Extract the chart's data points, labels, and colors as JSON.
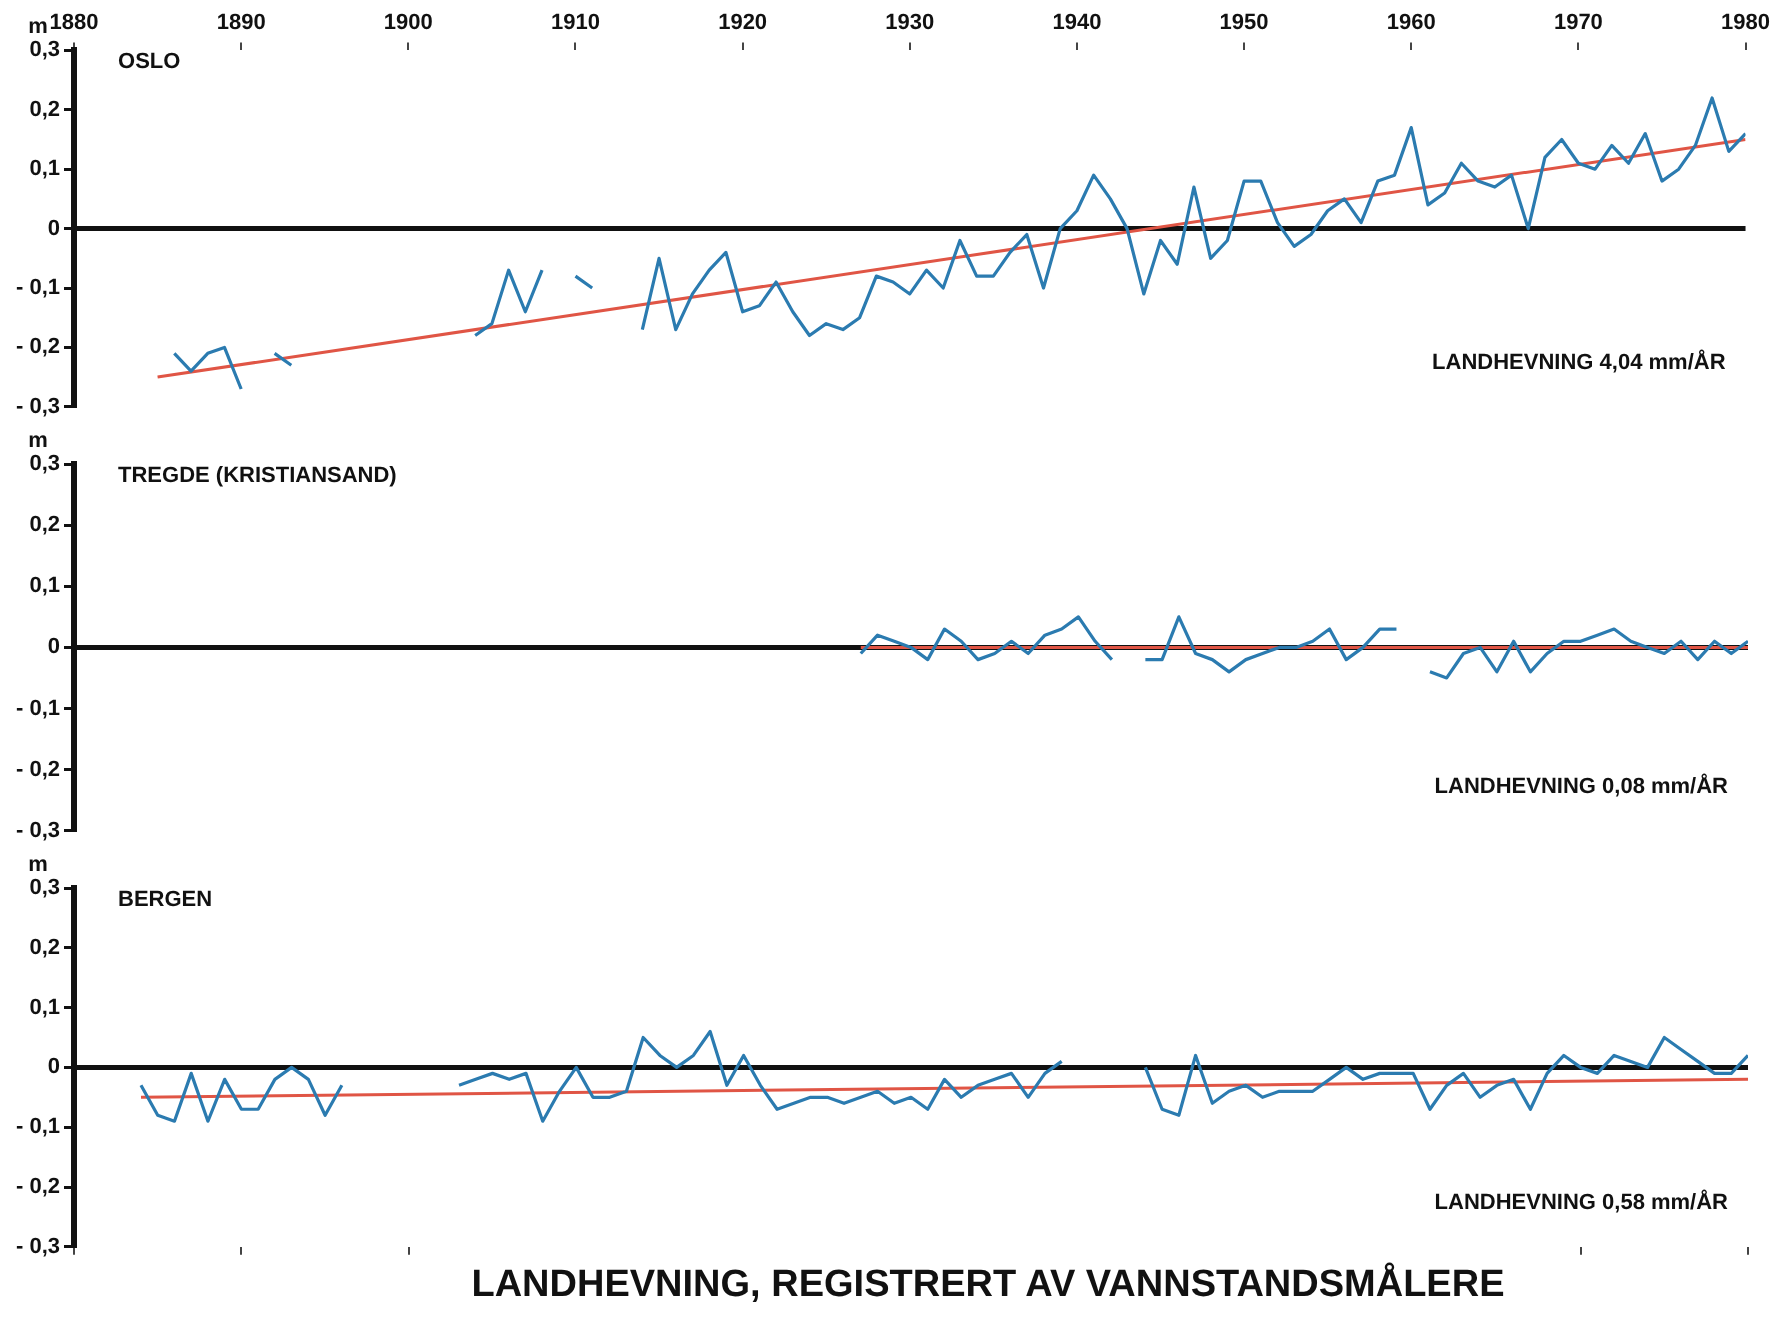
{
  "chart_data": [
    {
      "type": "line",
      "title": "OSLO",
      "ylabel": "m",
      "annotations": [
        "LANDHEVNING 4,04 mm/ÅR"
      ],
      "xlim": [
        1880,
        1980
      ],
      "xticks": [
        1880,
        1890,
        1900,
        1910,
        1920,
        1930,
        1940,
        1950,
        1960,
        1970,
        1980
      ],
      "ylim": [
        -0.3,
        0.3
      ],
      "yticks": [
        {
          "value": -0.3,
          "label": "- 0,3"
        },
        {
          "value": -0.2,
          "label": "- 0,2"
        },
        {
          "value": -0.1,
          "label": "- 0,1"
        },
        {
          "value": 0,
          "label": "0"
        },
        {
          "value": 0.1,
          "label": "0,1"
        },
        {
          "value": 0.2,
          "label": "0,2"
        },
        {
          "value": 0.3,
          "label": "0,3"
        }
      ],
      "grid": false,
      "legend": false,
      "marker": "none",
      "ref_lines": [
        {
          "axis": "y",
          "value": 0,
          "color": "#111111"
        }
      ],
      "series": [
        {
          "type": "line",
          "color": "#2b7bb0",
          "x": [
            1886,
            1887,
            1888,
            1889,
            1890,
            1891,
            1892,
            1893,
            1894,
            1904,
            1905,
            1906,
            1907,
            1908,
            1909,
            1910,
            1911,
            1912,
            1914,
            1915,
            1916,
            1917,
            1918,
            1919,
            1920,
            1921,
            1922,
            1923,
            1924,
            1925,
            1926,
            1927,
            1928,
            1929,
            1930,
            1931,
            1932,
            1933,
            1934,
            1935,
            1936,
            1937,
            1938,
            1939,
            1940,
            1941,
            1942,
            1943,
            1944,
            1945,
            1946,
            1947,
            1948,
            1949,
            1950,
            1951,
            1952,
            1953,
            1954,
            1955,
            1956,
            1957,
            1958,
            1959,
            1960,
            1961,
            1962,
            1963,
            1964,
            1965,
            1966,
            1967,
            1968,
            1969,
            1970,
            1971,
            1972,
            1973,
            1974,
            1975,
            1976,
            1977,
            1978,
            1979,
            1980
          ],
          "values": [
            -0.21,
            -0.24,
            -0.21,
            -0.2,
            -0.27,
            null,
            -0.21,
            -0.23,
            null,
            -0.18,
            -0.16,
            -0.07,
            -0.14,
            -0.07,
            null,
            -0.08,
            -0.1,
            null,
            -0.17,
            -0.05,
            -0.17,
            -0.11,
            -0.07,
            -0.04,
            -0.14,
            -0.13,
            -0.09,
            -0.14,
            -0.18,
            -0.16,
            -0.17,
            -0.15,
            -0.08,
            -0.09,
            -0.11,
            -0.07,
            -0.1,
            -0.02,
            -0.08,
            -0.08,
            -0.04,
            -0.01,
            -0.1,
            0,
            0.03,
            0.09,
            0.05,
            0,
            -0.11,
            -0.02,
            -0.06,
            0.07,
            -0.05,
            -0.02,
            0.08,
            0.08,
            0.01,
            -0.03,
            -0.01,
            0.03,
            0.05,
            0.01,
            0.08,
            0.09,
            0.17,
            0.04,
            0.06,
            0.11,
            0.08,
            0.07,
            0.09,
            0,
            0.12,
            0.15,
            0.11,
            0.1,
            0.14,
            0.11,
            0.16,
            0.08,
            0.1,
            0.14,
            0.22,
            0.13,
            0.16
          ]
        },
        {
          "type": "line",
          "color": "#e05545",
          "x": [
            1885,
            1980
          ],
          "values": [
            -0.25,
            0.15
          ]
        }
      ]
    },
    {
      "type": "line",
      "title": "TREGDE (KRISTIANSAND)",
      "ylabel": "m",
      "annotations": [
        "LANDHEVNING 0,08 mm/ÅR"
      ],
      "xlim": [
        1880,
        1980
      ],
      "ylim": [
        -0.3,
        0.3
      ],
      "yticks": [
        {
          "value": -0.3,
          "label": "- 0,3"
        },
        {
          "value": -0.2,
          "label": "- 0,2"
        },
        {
          "value": -0.1,
          "label": "- 0,1"
        },
        {
          "value": 0,
          "label": "0"
        },
        {
          "value": 0.1,
          "label": "0,1"
        },
        {
          "value": 0.2,
          "label": "0,2"
        },
        {
          "value": 0.3,
          "label": "0,3"
        }
      ],
      "tick_labels": "y",
      "grid": false,
      "legend": false,
      "marker": "none",
      "ref_lines": [
        {
          "axis": "y",
          "value": 0,
          "color": "#111111"
        }
      ],
      "series": [
        {
          "type": "line",
          "color": "#2b7bb0",
          "x": [
            1927,
            1928,
            1929,
            1930,
            1931,
            1932,
            1933,
            1934,
            1935,
            1936,
            1937,
            1938,
            1939,
            1940,
            1941,
            1942,
            1943,
            1944,
            1945,
            1946,
            1947,
            1948,
            1949,
            1950,
            1951,
            1952,
            1953,
            1954,
            1955,
            1956,
            1957,
            1958,
            1959,
            1960,
            1961,
            1962,
            1963,
            1964,
            1965,
            1966,
            1967,
            1968,
            1969,
            1970,
            1971,
            1972,
            1973,
            1974,
            1975,
            1976,
            1977,
            1978,
            1979,
            1980
          ],
          "values": [
            -0.01,
            0.02,
            0.01,
            0,
            -0.02,
            0.03,
            0.01,
            -0.02,
            -0.01,
            0.01,
            -0.01,
            0.02,
            0.03,
            0.05,
            0.01,
            -0.02,
            null,
            -0.02,
            -0.02,
            0.05,
            -0.01,
            -0.02,
            -0.04,
            -0.02,
            -0.01,
            0,
            0,
            0.01,
            0.03,
            -0.02,
            0,
            0.03,
            0.03,
            null,
            -0.04,
            -0.05,
            -0.01,
            0,
            -0.04,
            0.01,
            -0.04,
            -0.01,
            0.01,
            0.01,
            0.02,
            0.03,
            0.01,
            0,
            -0.01,
            0.01,
            -0.02,
            0.01,
            -0.01,
            0.01
          ]
        },
        {
          "type": "line",
          "color": "#e05545",
          "x": [
            1927,
            1980
          ],
          "values": [
            0,
            0
          ]
        }
      ]
    },
    {
      "type": "line",
      "title": "BERGEN",
      "ylabel": "m",
      "annotations": [
        "LANDHEVNING 0,58 mm/ÅR",
        "LANDHEVNING, REGISTRERT AV VANNSTANDSMÅLERE"
      ],
      "xlim": [
        1880,
        1980
      ],
      "xticks": [
        {
          "value": 1880,
          "label": null
        },
        {
          "value": 1890,
          "label": null
        },
        {
          "value": 1900,
          "label": null
        },
        {
          "value": 1970,
          "label": null
        },
        {
          "value": 1980,
          "label": null
        }
      ],
      "ylim": [
        -0.3,
        0.3
      ],
      "yticks": [
        {
          "value": -0.3,
          "label": "- 0,3"
        },
        {
          "value": -0.2,
          "label": "- 0,2"
        },
        {
          "value": -0.1,
          "label": "- 0,1"
        },
        {
          "value": 0,
          "label": "0"
        },
        {
          "value": 0.1,
          "label": "0,1"
        },
        {
          "value": 0.2,
          "label": "0,2"
        },
        {
          "value": 0.3,
          "label": "0,3"
        }
      ],
      "tick_labels": "y",
      "grid": false,
      "legend": false,
      "marker": "none",
      "ref_lines": [
        {
          "axis": "y",
          "value": 0,
          "color": "#111111"
        }
      ],
      "series": [
        {
          "type": "line",
          "color": "#2b7bb0",
          "x": [
            1884,
            1885,
            1886,
            1887,
            1888,
            1889,
            1890,
            1891,
            1892,
            1893,
            1894,
            1895,
            1896,
            1897,
            1903,
            1904,
            1905,
            1906,
            1907,
            1908,
            1909,
            1910,
            1911,
            1912,
            1913,
            1914,
            1915,
            1916,
            1917,
            1918,
            1919,
            1920,
            1921,
            1922,
            1923,
            1924,
            1925,
            1926,
            1927,
            1928,
            1929,
            1930,
            1931,
            1932,
            1933,
            1934,
            1935,
            1936,
            1937,
            1938,
            1939,
            1940,
            1944,
            1945,
            1946,
            1947,
            1948,
            1949,
            1950,
            1951,
            1952,
            1953,
            1954,
            1955,
            1956,
            1957,
            1958,
            1959,
            1960,
            1961,
            1962,
            1963,
            1964,
            1965,
            1966,
            1967,
            1968,
            1969,
            1970,
            1971,
            1972,
            1973,
            1974,
            1975,
            1976,
            1977,
            1978,
            1979,
            1980
          ],
          "values": [
            -0.03,
            -0.08,
            -0.09,
            -0.01,
            -0.09,
            -0.02,
            -0.07,
            -0.07,
            -0.02,
            0,
            -0.02,
            -0.08,
            -0.03,
            null,
            -0.03,
            -0.02,
            -0.01,
            -0.02,
            -0.01,
            -0.09,
            -0.04,
            0,
            -0.05,
            -0.05,
            -0.04,
            0.05,
            0.02,
            0,
            0.02,
            0.06,
            -0.03,
            0.02,
            -0.03,
            -0.07,
            -0.06,
            -0.05,
            -0.05,
            -0.06,
            -0.05,
            -0.04,
            -0.06,
            -0.05,
            -0.07,
            -0.02,
            -0.05,
            -0.03,
            -0.02,
            -0.01,
            -0.05,
            -0.01,
            0.01,
            null,
            0,
            -0.07,
            -0.08,
            0.02,
            -0.06,
            -0.04,
            -0.03,
            -0.05,
            -0.04,
            -0.04,
            -0.04,
            -0.02,
            0,
            -0.02,
            -0.01,
            -0.01,
            -0.01,
            -0.07,
            -0.03,
            -0.01,
            -0.05,
            -0.03,
            -0.02,
            -0.07,
            -0.01,
            0.02,
            0,
            -0.01,
            0.02,
            0.01,
            0,
            0.05,
            0.03,
            0.01,
            -0.01,
            -0.01,
            0.02
          ]
        },
        {
          "type": "line",
          "color": "#e05545",
          "x": [
            1884,
            1980
          ],
          "values": [
            -0.05,
            -0.02
          ]
        }
      ]
    }
  ]
}
